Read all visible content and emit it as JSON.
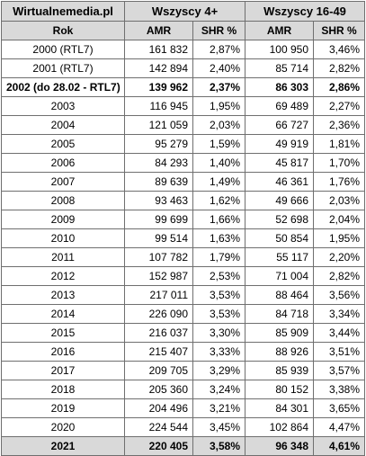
{
  "header": {
    "source": "Wirtualnemedia.pl",
    "group1": "Wszyscy 4+",
    "group2": "Wszyscy 16-49",
    "col_rok": "Rok",
    "col_amr": "AMR",
    "col_shr": "SHR %"
  },
  "rows": [
    {
      "rok": "2000 (RTL7)",
      "amr1": "161 832",
      "shr1": "2,87%",
      "amr2": "100 950",
      "shr2": "3,46%"
    },
    {
      "rok": "2001 (RTL7)",
      "amr1": "142 894",
      "shr1": "2,40%",
      "amr2": "85 714",
      "shr2": "2,82%"
    },
    {
      "rok": "2002 (do 28.02 - RTL7)",
      "amr1": "139 962",
      "shr1": "2,37%",
      "amr2": "86 303",
      "shr2": "2,86%"
    },
    {
      "rok": "2003",
      "amr1": "116 945",
      "shr1": "1,95%",
      "amr2": "69 489",
      "shr2": "2,27%"
    },
    {
      "rok": "2004",
      "amr1": "121 059",
      "shr1": "2,03%",
      "amr2": "66 727",
      "shr2": "2,36%"
    },
    {
      "rok": "2005",
      "amr1": "95 279",
      "shr1": "1,59%",
      "amr2": "49 919",
      "shr2": "1,81%"
    },
    {
      "rok": "2006",
      "amr1": "84 293",
      "shr1": "1,40%",
      "amr2": "45 817",
      "shr2": "1,70%"
    },
    {
      "rok": "2007",
      "amr1": "89 639",
      "shr1": "1,49%",
      "amr2": "46 361",
      "shr2": "1,76%"
    },
    {
      "rok": "2008",
      "amr1": "93 463",
      "shr1": "1,62%",
      "amr2": "49 666",
      "shr2": "2,03%"
    },
    {
      "rok": "2009",
      "amr1": "99 699",
      "shr1": "1,66%",
      "amr2": "52 698",
      "shr2": "2,04%"
    },
    {
      "rok": "2010",
      "amr1": "99 514",
      "shr1": "1,63%",
      "amr2": "50 854",
      "shr2": "1,95%"
    },
    {
      "rok": "2011",
      "amr1": "107 782",
      "shr1": "1,79%",
      "amr2": "55 117",
      "shr2": "2,20%"
    },
    {
      "rok": "2012",
      "amr1": "152 987",
      "shr1": "2,53%",
      "amr2": "71 004",
      "shr2": "2,82%"
    },
    {
      "rok": "2013",
      "amr1": "217 011",
      "shr1": "3,53%",
      "amr2": "88 464",
      "shr2": "3,56%"
    },
    {
      "rok": "2014",
      "amr1": "226 090",
      "shr1": "3,53%",
      "amr2": "84 718",
      "shr2": "3,34%"
    },
    {
      "rok": "2015",
      "amr1": "216 037",
      "shr1": "3,30%",
      "amr2": "85 909",
      "shr2": "3,44%"
    },
    {
      "rok": "2016",
      "amr1": "215 407",
      "shr1": "3,33%",
      "amr2": "88 926",
      "shr2": "3,51%"
    },
    {
      "rok": "2017",
      "amr1": "209 705",
      "shr1": "3,29%",
      "amr2": "85 939",
      "shr2": "3,57%"
    },
    {
      "rok": "2018",
      "amr1": "205 360",
      "shr1": "3,24%",
      "amr2": "80 152",
      "shr2": "3,38%"
    },
    {
      "rok": "2019",
      "amr1": "204 496",
      "shr1": "3,21%",
      "amr2": "84 301",
      "shr2": "3,65%"
    },
    {
      "rok": "2020",
      "amr1": "224 544",
      "shr1": "3,45%",
      "amr2": "102 864",
      "shr2": "4,47%"
    },
    {
      "rok": "2021",
      "amr1": "220 405",
      "shr1": "3,58%",
      "amr2": "96 348",
      "shr2": "4,61%"
    }
  ],
  "colors": {
    "header_bg": "#d9d9d9",
    "border": "#6f6f6f"
  }
}
